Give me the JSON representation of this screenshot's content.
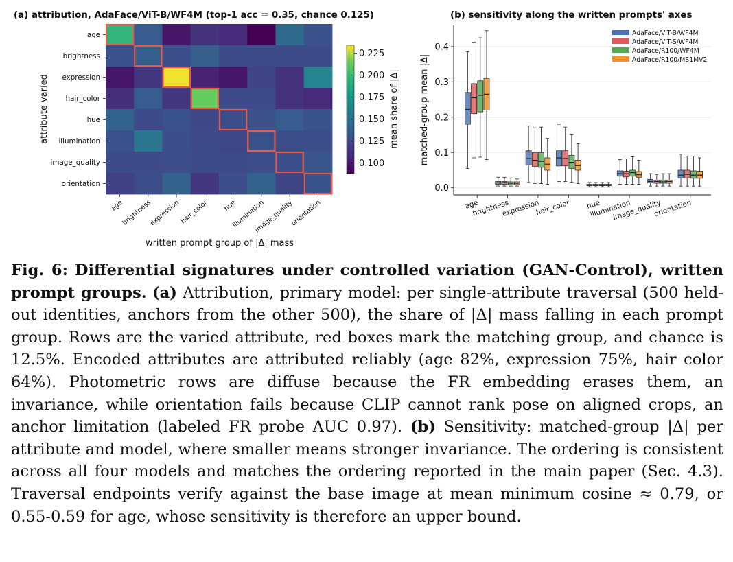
{
  "figure": {
    "panels": [
      {
        "title": "(a) attribution, AdaFace/ViT-B/WF4M (top-1 acc = 0.35, chance 0.125)"
      },
      {
        "title": "(b) sensitivity along the written prompts' axes"
      }
    ]
  },
  "caption": {
    "label": "Fig. 6:",
    "bold_title": "Differential signatures under controlled variation (GAN-Control), written prompt groups.",
    "part_a_label": "(a)",
    "part_a_text": "Attribution, primary model: per single-attribute traversal (500 held-out identities, anchors from the other 500), the share of |Δ| mass falling in each prompt group. Rows are the varied attribute, red boxes mark the matching group, and chance is 12.5%. Encoded attributes are attributed reliably (age 82%, expression 75%, hair color 64%). Photometric rows are diffuse because the FR embedding erases them, an invariance, while orientation fails because CLIP cannot rank pose on aligned crops, an anchor limitation (labeled FR probe AUC 0.97).",
    "part_b_label": "(b)",
    "part_b_text": "Sensitivity: matched-group |Δ| per attribute and model, where smaller means stronger invariance. The ordering is consistent across all four models and matches the ordering reported in the main paper (Sec. 4.3). Traversal endpoints verify against the base image at mean minimum cosine ≈ 0.79, or 0.55-0.59 for age, whose sensitivity is therefore an upper bound."
  },
  "chart_data": [
    {
      "type": "heatmap",
      "title": "(a) attribution, AdaFace/ViT-B/WF4M (top-1 acc = 0.35, chance 0.125)",
      "xlabel": "written prompt group of |Δ| mass",
      "ylabel": "attribute varied",
      "x_categories": [
        "age",
        "brightness",
        "expression",
        "hair_color",
        "hue",
        "illumination",
        "image_quality",
        "orientation"
      ],
      "y_categories": [
        "age",
        "brightness",
        "expression",
        "hair_color",
        "hue",
        "illumination",
        "image_quality",
        "orientation"
      ],
      "values": [
        [
          0.195,
          0.135,
          0.098,
          0.112,
          0.108,
          0.085,
          0.145,
          0.13
        ],
        [
          0.13,
          0.137,
          0.128,
          0.137,
          0.126,
          0.126,
          0.126,
          0.126
        ],
        [
          0.098,
          0.115,
          0.232,
          0.104,
          0.098,
          0.122,
          0.112,
          0.162
        ],
        [
          0.11,
          0.135,
          0.115,
          0.213,
          0.125,
          0.125,
          0.112,
          0.108
        ],
        [
          0.14,
          0.125,
          0.13,
          0.124,
          0.128,
          0.129,
          0.135,
          0.131
        ],
        [
          0.13,
          0.152,
          0.128,
          0.125,
          0.123,
          0.13,
          0.127,
          0.127
        ],
        [
          0.126,
          0.126,
          0.127,
          0.126,
          0.126,
          0.127,
          0.128,
          0.132
        ],
        [
          0.12,
          0.127,
          0.14,
          0.115,
          0.128,
          0.14,
          0.122,
          0.131
        ]
      ],
      "highlight": "diagonal",
      "highlight_color": "#e8594a",
      "colormap": "viridis",
      "colorbar": {
        "label": "mean share of |Δ|",
        "range": [
          0.088,
          0.234
        ],
        "ticks": [
          0.1,
          0.125,
          0.15,
          0.175,
          0.2,
          0.225
        ],
        "tick_labels": [
          "0.100",
          "0.125",
          "0.150",
          "0.175",
          "0.200",
          "0.225"
        ]
      }
    },
    {
      "type": "box",
      "title": "(b) sensitivity along the written prompts' axes",
      "xlabel": "",
      "ylabel": "matched-group mean |Δ|",
      "ylim": [
        -0.02,
        0.46
      ],
      "yticks": [
        0.0,
        0.1,
        0.2,
        0.3,
        0.4
      ],
      "ytick_labels": [
        "0.0",
        "0.1",
        "0.2",
        "0.3",
        "0.4"
      ],
      "grid": true,
      "legend_position": "top-right",
      "categories": [
        "age",
        "brightness",
        "expression",
        "hair_color",
        "hue",
        "illumination",
        "image_quality",
        "orientation"
      ],
      "series": [
        {
          "name": "AdaFace/ViT-B/WF4M",
          "color": "#4c72b0",
          "boxes": [
            {
              "min": 0.055,
              "q1": 0.18,
              "median": 0.222,
              "q3": 0.27,
              "max": 0.385
            },
            {
              "min": 0.005,
              "q1": 0.01,
              "median": 0.014,
              "q3": 0.018,
              "max": 0.03
            },
            {
              "min": 0.015,
              "q1": 0.065,
              "median": 0.083,
              "q3": 0.105,
              "max": 0.175
            },
            {
              "min": 0.018,
              "q1": 0.062,
              "median": 0.085,
              "q3": 0.105,
              "max": 0.18
            },
            {
              "min": 0.003,
              "q1": 0.006,
              "median": 0.008,
              "q3": 0.01,
              "max": 0.015
            },
            {
              "min": 0.01,
              "q1": 0.033,
              "median": 0.04,
              "q3": 0.048,
              "max": 0.08
            },
            {
              "min": 0.005,
              "q1": 0.014,
              "median": 0.018,
              "q3": 0.024,
              "max": 0.04
            },
            {
              "min": 0.005,
              "q1": 0.028,
              "median": 0.036,
              "q3": 0.05,
              "max": 0.095
            }
          ]
        },
        {
          "name": "AdaFace/ViT-S/WF4M",
          "color": "#dd5b5b",
          "boxes": [
            {
              "min": 0.085,
              "q1": 0.21,
              "median": 0.255,
              "q3": 0.295,
              "max": 0.412
            },
            {
              "min": 0.005,
              "q1": 0.01,
              "median": 0.015,
              "q3": 0.018,
              "max": 0.03
            },
            {
              "min": 0.012,
              "q1": 0.06,
              "median": 0.078,
              "q3": 0.1,
              "max": 0.17
            },
            {
              "min": 0.018,
              "q1": 0.062,
              "median": 0.083,
              "q3": 0.105,
              "max": 0.172
            },
            {
              "min": 0.003,
              "q1": 0.006,
              "median": 0.008,
              "q3": 0.01,
              "max": 0.015
            },
            {
              "min": 0.01,
              "q1": 0.031,
              "median": 0.04,
              "q3": 0.047,
              "max": 0.082
            },
            {
              "min": 0.005,
              "q1": 0.013,
              "median": 0.018,
              "q3": 0.022,
              "max": 0.038
            },
            {
              "min": 0.005,
              "q1": 0.028,
              "median": 0.038,
              "q3": 0.05,
              "max": 0.09
            }
          ]
        },
        {
          "name": "AdaFace/R100/WF4M",
          "color": "#55a855",
          "boxes": [
            {
              "min": 0.087,
              "q1": 0.215,
              "median": 0.262,
              "q3": 0.303,
              "max": 0.425
            },
            {
              "min": 0.005,
              "q1": 0.009,
              "median": 0.013,
              "q3": 0.017,
              "max": 0.028
            },
            {
              "min": 0.012,
              "q1": 0.058,
              "median": 0.075,
              "q3": 0.1,
              "max": 0.172
            },
            {
              "min": 0.016,
              "q1": 0.055,
              "median": 0.072,
              "q3": 0.092,
              "max": 0.15
            },
            {
              "min": 0.003,
              "q1": 0.006,
              "median": 0.008,
              "q3": 0.01,
              "max": 0.015
            },
            {
              "min": 0.01,
              "q1": 0.033,
              "median": 0.043,
              "q3": 0.05,
              "max": 0.088
            },
            {
              "min": 0.005,
              "q1": 0.013,
              "median": 0.017,
              "q3": 0.022,
              "max": 0.04
            },
            {
              "min": 0.005,
              "q1": 0.027,
              "median": 0.036,
              "q3": 0.048,
              "max": 0.09
            }
          ]
        },
        {
          "name": "AdaFace/R100/MS1MV2",
          "color": "#f0922b",
          "boxes": [
            {
              "min": 0.08,
              "q1": 0.22,
              "median": 0.265,
              "q3": 0.31,
              "max": 0.445
            },
            {
              "min": 0.005,
              "q1": 0.009,
              "median": 0.013,
              "q3": 0.017,
              "max": 0.025
            },
            {
              "min": 0.01,
              "q1": 0.05,
              "median": 0.067,
              "q3": 0.085,
              "max": 0.14
            },
            {
              "min": 0.012,
              "q1": 0.05,
              "median": 0.063,
              "q3": 0.078,
              "max": 0.125
            },
            {
              "min": 0.003,
              "q1": 0.006,
              "median": 0.008,
              "q3": 0.01,
              "max": 0.015
            },
            {
              "min": 0.01,
              "q1": 0.03,
              "median": 0.037,
              "q3": 0.046,
              "max": 0.078
            },
            {
              "min": 0.005,
              "q1": 0.013,
              "median": 0.018,
              "q3": 0.022,
              "max": 0.04
            },
            {
              "min": 0.005,
              "q1": 0.027,
              "median": 0.036,
              "q3": 0.047,
              "max": 0.085
            }
          ]
        }
      ]
    }
  ]
}
